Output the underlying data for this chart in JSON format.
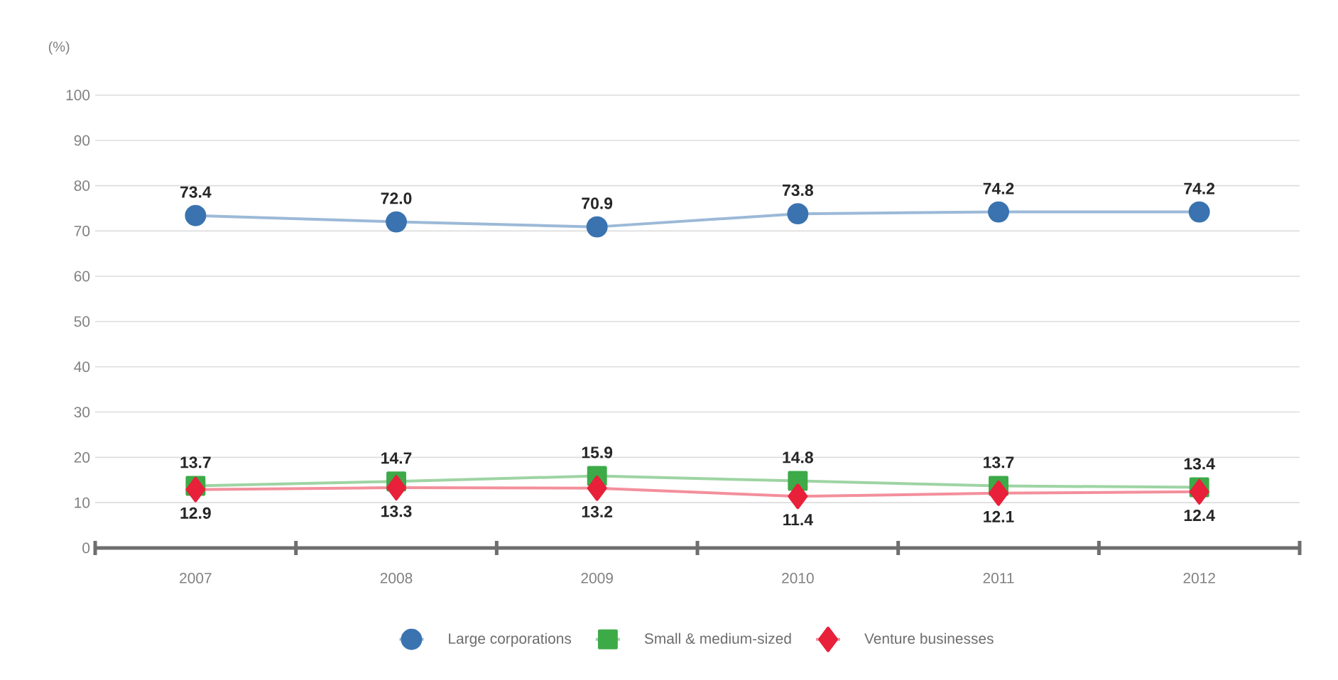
{
  "chart_data": {
    "type": "line",
    "ylabel": "(%)",
    "categories": [
      "2007",
      "2008",
      "2009",
      "2010",
      "2011",
      "2012"
    ],
    "series": [
      {
        "name": "Large corporations",
        "color": "#3a73b0",
        "marker": "circle",
        "values": [
          73.4,
          72.0,
          70.9,
          73.8,
          74.2,
          74.2
        ],
        "value_labels": [
          "73.4",
          "72.0",
          "70.9",
          "73.8",
          "74.2",
          "74.2"
        ]
      },
      {
        "name": "Small & medium-sized",
        "color": "#3daa48",
        "marker": "square",
        "values": [
          13.7,
          14.7,
          15.9,
          14.8,
          13.7,
          13.4
        ],
        "value_labels": [
          "13.7",
          "14.7",
          "15.9",
          "14.8",
          "13.7",
          "13.4"
        ]
      },
      {
        "name": "Venture businesses",
        "color": "#e8203a",
        "marker": "diamond",
        "values": [
          12.9,
          13.3,
          13.2,
          11.4,
          12.1,
          12.4
        ],
        "value_labels": [
          "12.9",
          "13.3",
          "13.2",
          "11.4",
          "12.1",
          "12.4"
        ]
      }
    ],
    "ylim": [
      0,
      100
    ],
    "yticks": [
      0,
      10,
      20,
      30,
      40,
      50,
      60,
      70,
      80,
      90,
      100
    ],
    "grid": "y",
    "legend": "bottom",
    "line_style": "solid"
  }
}
